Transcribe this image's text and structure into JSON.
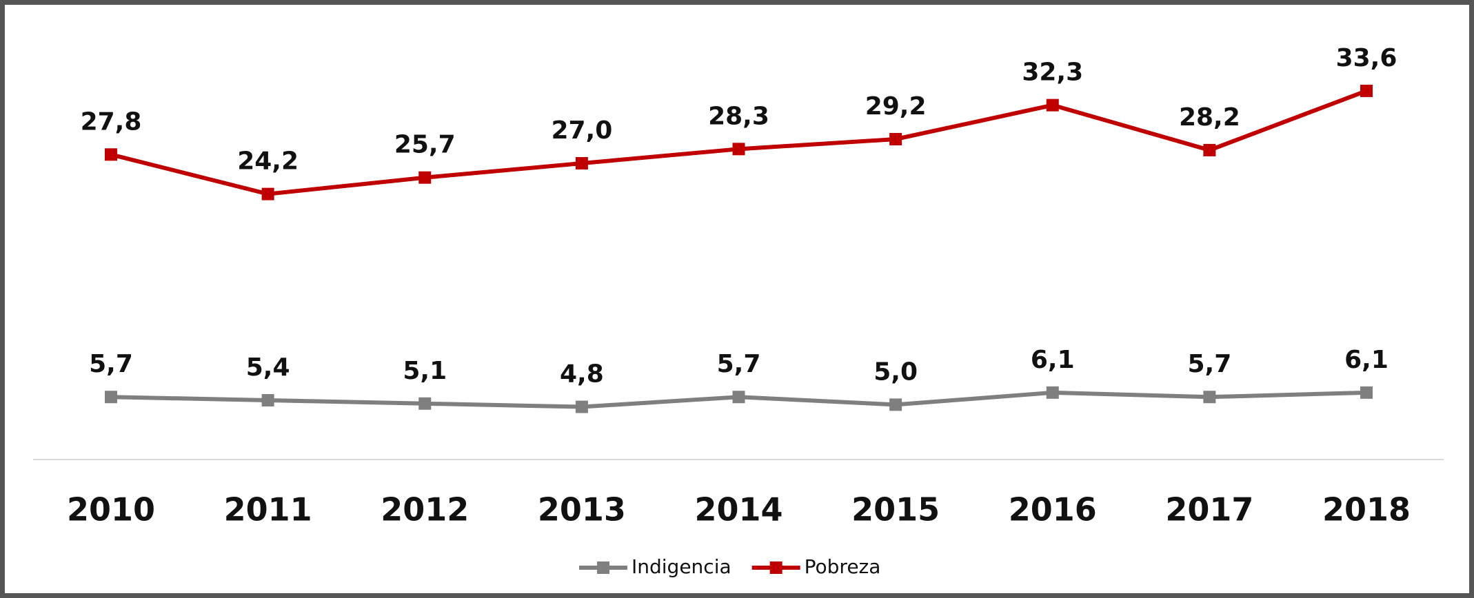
{
  "chart_data": {
    "type": "line",
    "categories": [
      "2010",
      "2011",
      "2012",
      "2013",
      "2014",
      "2015",
      "2016",
      "2017",
      "2018"
    ],
    "series": [
      {
        "name": "Indigencia",
        "color": "#7f7f7f",
        "values": [
          5.7,
          5.4,
          5.1,
          4.8,
          5.7,
          5.0,
          6.1,
          5.7,
          6.1
        ],
        "value_labels": [
          "5,7",
          "5,4",
          "5,1",
          "4,8",
          "5,7",
          "5,0",
          "6,1",
          "5,7",
          "6,1"
        ]
      },
      {
        "name": "Pobreza",
        "color": "#c00000",
        "values": [
          27.8,
          24.2,
          25.7,
          27.0,
          28.3,
          29.2,
          32.3,
          28.2,
          33.6
        ],
        "value_labels": [
          "27,8",
          "24,2",
          "25,7",
          "27,0",
          "28,3",
          "29,2",
          "32,3",
          "28,2",
          "33,6"
        ]
      }
    ],
    "ylim": [
      0,
      40
    ],
    "legend": "bottom"
  }
}
